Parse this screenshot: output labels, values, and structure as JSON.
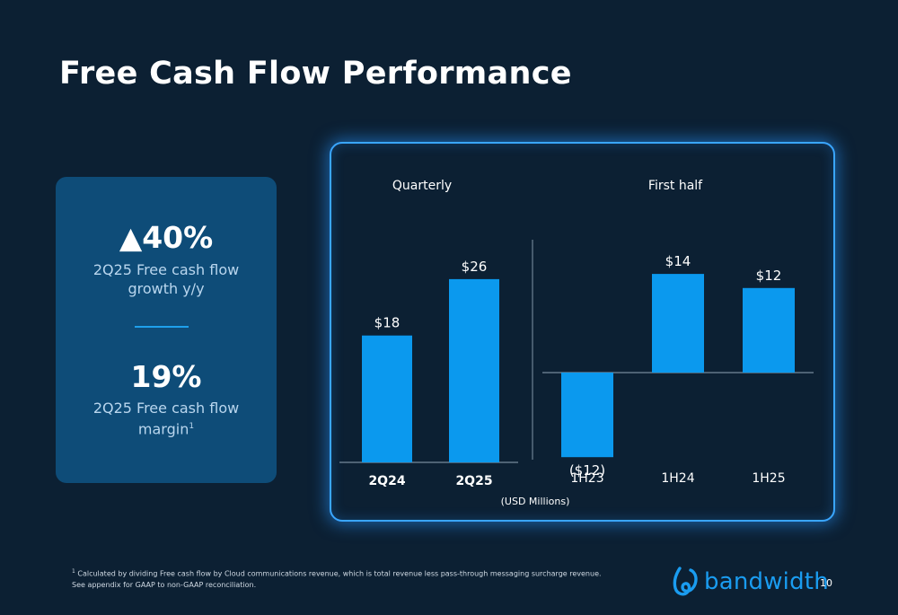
{
  "slide": {
    "title": "Free Cash Flow Performance",
    "page_number": "10"
  },
  "kpis": {
    "growth_value": "▲40%",
    "growth_label_line1": "2Q25 Free cash flow",
    "growth_label_line2": "growth y/y",
    "margin_value": "19%",
    "margin_label_line1": "2Q25 Free cash flow",
    "margin_label_line2": "margin",
    "margin_footnote_marker": "1"
  },
  "footnote": {
    "marker": "1",
    "line1": "Calculated by dividing Free cash flow by Cloud communications revenue, which is total revenue less pass-through messaging surcharge revenue.",
    "line2": "See appendix for GAAP to non-GAAP reconciliation."
  },
  "brand": {
    "name": "bandwidth",
    "icon": "bandwidth-logo-icon",
    "color": "#1a9cf0"
  },
  "chart_data": [
    {
      "type": "bar",
      "title": "Quarterly",
      "categories": [
        "2Q24",
        "2Q25"
      ],
      "values": [
        18,
        26
      ],
      "data_labels": [
        "$18",
        "$26"
      ],
      "ylim": [
        -15,
        30
      ],
      "bar_color": "#0b99ee"
    },
    {
      "type": "bar",
      "title": "First half",
      "categories": [
        "1H23",
        "1H24",
        "1H25"
      ],
      "values": [
        -12,
        14,
        12
      ],
      "data_labels": [
        "($12)",
        "$14",
        "$12"
      ],
      "ylim": [
        -15,
        30
      ],
      "bar_color": "#0b99ee"
    }
  ],
  "chart_units": "(USD Millions)"
}
